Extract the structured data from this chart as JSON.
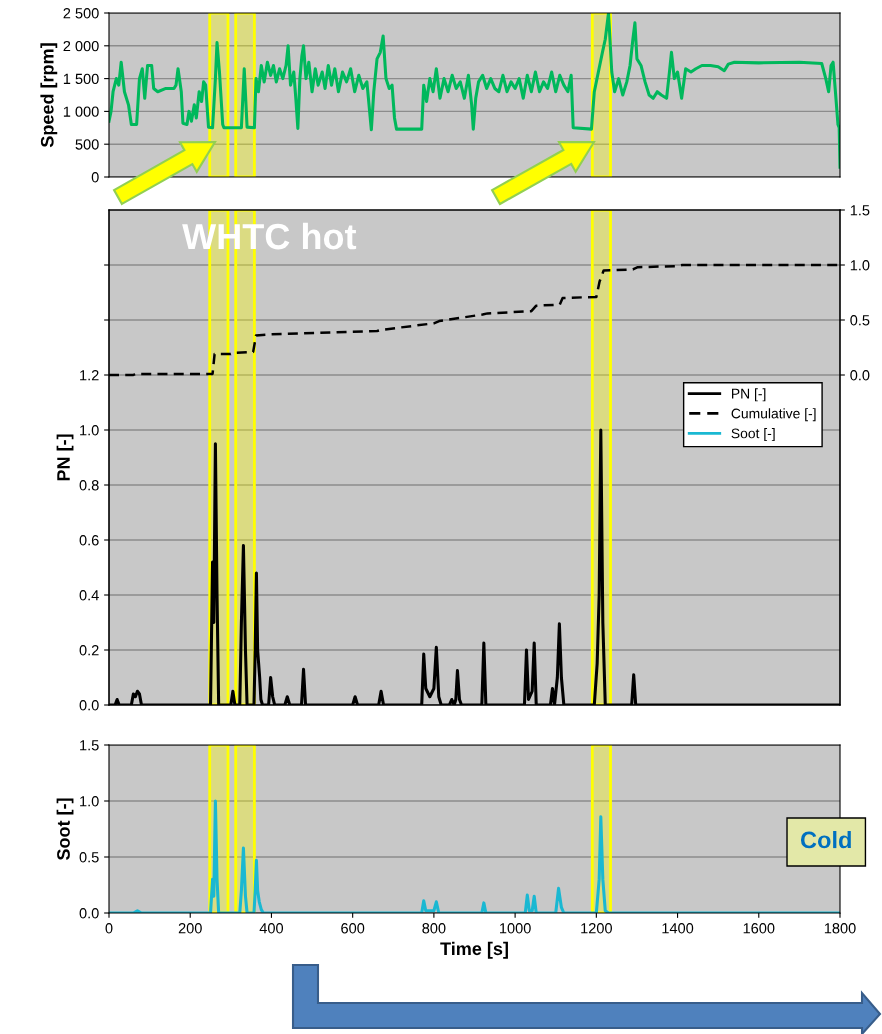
{
  "chart_data": [
    {
      "type": "line",
      "ylabel": "Speed [rpm]",
      "xlim": [
        0,
        1800
      ],
      "ylim": [
        0,
        2500
      ],
      "tick_labels": "y",
      "grid": "y",
      "yticks": [
        0,
        500,
        {
          "value": 1000,
          "label": "1 000"
        },
        {
          "value": 1500,
          "label": "1 500"
        },
        {
          "value": 2000,
          "label": "2 000"
        },
        {
          "value": 2500,
          "label": "2 500"
        }
      ],
      "bands": [
        {
          "axis": "x",
          "from": 248,
          "to": 293,
          "color": "#ffff00"
        },
        {
          "axis": "x",
          "from": 312,
          "to": 358,
          "color": "#ffff00"
        },
        {
          "axis": "x",
          "from": 1190,
          "to": 1235,
          "color": "#ffff00"
        }
      ],
      "series": [
        {
          "color": "#00b85c",
          "x": [
            0,
            5,
            10,
            18,
            24,
            30,
            38,
            48,
            55,
            68,
            75,
            82,
            88,
            95,
            105,
            110,
            120,
            140,
            160,
            165,
            170,
            178,
            182,
            192,
            197,
            203,
            210,
            215,
            222,
            228,
            233,
            238,
            245,
            255,
            262,
            266,
            272,
            280,
            283,
            326,
            333,
            340,
            358,
            362,
            368,
            375,
            382,
            390,
            398,
            405,
            412,
            420,
            428,
            436,
            441,
            447,
            455,
            460,
            465,
            470,
            475,
            479,
            485,
            492,
            500,
            508,
            515,
            525,
            532,
            540,
            548,
            556,
            565,
            575,
            585,
            595,
            605,
            615,
            625,
            635,
            646,
            652,
            660,
            668,
            675,
            682,
            690,
            697,
            703,
            708,
            770,
            775,
            782,
            790,
            798,
            806,
            815,
            825,
            835,
            845,
            855,
            865,
            875,
            885,
            893,
            897,
            903,
            910,
            920,
            930,
            940,
            950,
            960,
            970,
            980,
            990,
            1000,
            1010,
            1020,
            1030,
            1040,
            1050,
            1060,
            1070,
            1080,
            1090,
            1100,
            1110,
            1120,
            1130,
            1138,
            1143,
            1188,
            1195,
            1205,
            1215,
            1222,
            1230,
            1238,
            1245,
            1255,
            1265,
            1275,
            1283,
            1290,
            1295,
            1300,
            1310,
            1320,
            1330,
            1340,
            1350,
            1360,
            1373,
            1380,
            1385,
            1392,
            1400,
            1410,
            1420,
            1433,
            1445,
            1460,
            1481,
            1500,
            1515,
            1525,
            1540,
            1600,
            1700,
            1755,
            1765,
            1772,
            1778,
            1783,
            1790,
            1795,
            1798,
            1800
          ],
          "values": [
            850,
            1000,
            1300,
            1500,
            1400,
            1750,
            1300,
            1100,
            800,
            800,
            1500,
            1650,
            1200,
            1700,
            1700,
            1350,
            1300,
            1350,
            1350,
            1400,
            1650,
            1300,
            820,
            800,
            1000,
            850,
            1100,
            900,
            1300,
            1150,
            1450,
            1400,
            760,
            750,
            1500,
            2050,
            1600,
            800,
            750,
            750,
            1650,
            760,
            750,
            1500,
            1300,
            1700,
            1450,
            1750,
            1550,
            1700,
            1450,
            1650,
            1500,
            1700,
            2000,
            1400,
            1600,
            1200,
            740,
            1500,
            1850,
            2000,
            1500,
            1750,
            1300,
            1650,
            1400,
            1600,
            1350,
            1700,
            1400,
            1650,
            1300,
            1600,
            1450,
            1650,
            1300,
            1550,
            1350,
            1450,
            720,
            1300,
            1800,
            1900,
            2150,
            1500,
            1350,
            1400,
            900,
            730,
            730,
            1400,
            1150,
            1500,
            1300,
            1650,
            1200,
            1500,
            1300,
            1550,
            1350,
            1450,
            1200,
            1550,
            1100,
            730,
            1200,
            1450,
            1550,
            1350,
            1500,
            1350,
            1300,
            1550,
            1300,
            1450,
            1350,
            1500,
            1200,
            1550,
            1300,
            1600,
            1300,
            1450,
            1350,
            1600,
            1300,
            1550,
            1400,
            1300,
            1550,
            750,
            730,
            1300,
            1600,
            1900,
            2100,
            2500,
            1600,
            1300,
            1500,
            1250,
            1450,
            1700,
            2100,
            2350,
            1800,
            1700,
            1450,
            1250,
            1200,
            1300,
            1250,
            1200,
            1600,
            1900,
            1500,
            1600,
            1200,
            1650,
            1600,
            1650,
            1700,
            1700,
            1680,
            1620,
            1720,
            1750,
            1740,
            1750,
            1730,
            1500,
            1300,
            1700,
            1750,
            1200,
            800,
            750,
            150
          ]
        }
      ]
    },
    {
      "type": "line",
      "ylabel": "PN [-]",
      "xlim": [
        0,
        1800
      ],
      "ylim": [
        0,
        1.8
      ],
      "y2lim": [
        -3,
        1.5
      ],
      "tick_labels": "y",
      "grid": "y",
      "legend": "right",
      "yticks": [
        {
          "value": 0,
          "label": "0.0"
        },
        0.2,
        0.4,
        0.6,
        0.8,
        {
          "value": 1,
          "label": "1.0"
        },
        1.2,
        {
          "value": 1.4,
          "label": null
        },
        {
          "value": 1.6,
          "label": null
        }
      ],
      "y2ticks": [
        {
          "value": 0,
          "label": "0.0"
        },
        0.5,
        {
          "value": 1,
          "label": "1.0"
        },
        1.5
      ],
      "annotations": [
        "WHTC hot"
      ],
      "bands": [
        {
          "axis": "x",
          "from": 248,
          "to": 293,
          "color": "#ffff00"
        },
        {
          "axis": "x",
          "from": 312,
          "to": 358,
          "color": "#ffff00"
        },
        {
          "axis": "x",
          "from": 1190,
          "to": 1235,
          "color": "#ffff00"
        }
      ],
      "series": [
        {
          "name": "PN [-]",
          "color": "#000000",
          "x": [
            0,
            15,
            20,
            25,
            55,
            60,
            65,
            70,
            75,
            80,
            250,
            255,
            258,
            262,
            266,
            270,
            275,
            300,
            305,
            310,
            322,
            326,
            331,
            336,
            340,
            357,
            360,
            363,
            366,
            368,
            371,
            374,
            378,
            383,
            393,
            398,
            403,
            408,
            433,
            439,
            445,
            474,
            479,
            484,
            600,
            606,
            612,
            664,
            670,
            676,
            770,
            775,
            780,
            790,
            800,
            806,
            812,
            818,
            838,
            844,
            850,
            854,
            858,
            863,
            868,
            918,
            923,
            928,
            1023,
            1028,
            1033,
            1042,
            1047,
            1052,
            1087,
            1092,
            1097,
            1104,
            1109,
            1114,
            1120,
            1195,
            1202,
            1207,
            1211,
            1216,
            1222,
            1287,
            1292,
            1297,
            1800
          ],
          "values": [
            0,
            0,
            0.02,
            0,
            0,
            0.04,
            0.03,
            0.05,
            0.04,
            0,
            0,
            0.52,
            0.3,
            0.95,
            0.4,
            0,
            0,
            0,
            0.05,
            0,
            0,
            0.3,
            0.58,
            0.2,
            0,
            0,
            0.2,
            0.48,
            0.2,
            0.16,
            0.1,
            0.02,
            0,
            0,
            0,
            0.1,
            0.03,
            0,
            0,
            0.03,
            0,
            0,
            0.13,
            0,
            0,
            0.03,
            0,
            0,
            0.05,
            0,
            0,
            0.185,
            0.06,
            0.03,
            0.06,
            0.21,
            0.03,
            0,
            0,
            0.02,
            0,
            0.02,
            0.125,
            0.02,
            0,
            0,
            0.225,
            0,
            0,
            0.2,
            0.02,
            0.05,
            0.225,
            0,
            0,
            0.06,
            0,
            0.1,
            0.295,
            0.1,
            0,
            0,
            0.15,
            0.4,
            1.0,
            0.3,
            0,
            0,
            0.11,
            0,
            0
          ]
        },
        {
          "name": "Cumulative [-]",
          "color": "#000000",
          "axis": "y2",
          "line_style": "dashed",
          "x": [
            0,
            60,
            65,
            255,
            260,
            300,
            305,
            355,
            362,
            400,
            660,
            670,
            800,
            813,
            920,
            932,
            1040,
            1052,
            1110,
            1117,
            1200,
            1208,
            1218,
            1290,
            1302,
            1400,
            1412,
            1800
          ],
          "values": [
            0,
            0,
            0.01,
            0.01,
            0.19,
            0.19,
            0.2,
            0.21,
            0.36,
            0.37,
            0.4,
            0.41,
            0.47,
            0.49,
            0.55,
            0.56,
            0.58,
            0.63,
            0.64,
            0.7,
            0.71,
            0.85,
            0.95,
            0.96,
            0.98,
            0.99,
            1.0,
            1.0
          ]
        }
      ]
    },
    {
      "type": "line",
      "ylabel": "Soot [-]",
      "xlabel": "Time [s]",
      "xlim": [
        0,
        1800
      ],
      "ylim": [
        0,
        1.5
      ],
      "grid": "y",
      "xticks": [
        0,
        200,
        400,
        600,
        800,
        1000,
        1200,
        1400,
        1600,
        1800
      ],
      "yticks": [
        {
          "value": 0,
          "label": "0.0"
        },
        0.5,
        {
          "value": 1,
          "label": "1.0"
        },
        1.5
      ],
      "annotations": [
        "Cold"
      ],
      "bands": [
        {
          "axis": "x",
          "from": 248,
          "to": 293,
          "color": "#ffff00"
        },
        {
          "axis": "x",
          "from": 312,
          "to": 358,
          "color": "#ffff00"
        },
        {
          "axis": "x",
          "from": 1190,
          "to": 1235,
          "color": "#ffff00"
        }
      ],
      "series": [
        {
          "name": "Soot [-]",
          "color": "#1ab8d2",
          "x": [
            0,
            60,
            70,
            80,
            250,
            255,
            258,
            262,
            266,
            270,
            322,
            326,
            331,
            336,
            340,
            357,
            360,
            363,
            366,
            370,
            375,
            380,
            770,
            775,
            780,
            800,
            806,
            812,
            918,
            923,
            928,
            1025,
            1030,
            1035,
            1042,
            1047,
            1052,
            1100,
            1107,
            1114,
            1120,
            1200,
            1207,
            1211,
            1216,
            1222,
            1230,
            1800
          ],
          "values": [
            0,
            0,
            0.02,
            0,
            0,
            0.3,
            0.15,
            1.0,
            0.3,
            0,
            0,
            0.2,
            0.58,
            0.15,
            0,
            0,
            0.2,
            0.47,
            0.2,
            0.1,
            0.03,
            0,
            0,
            0.11,
            0.02,
            0.02,
            0.1,
            0,
            0,
            0.09,
            0,
            0,
            0.16,
            0.02,
            0.02,
            0.15,
            0,
            0,
            0.22,
            0.05,
            0,
            0,
            0.3,
            0.86,
            0.3,
            0.02,
            0,
            0
          ]
        }
      ]
    }
  ]
}
